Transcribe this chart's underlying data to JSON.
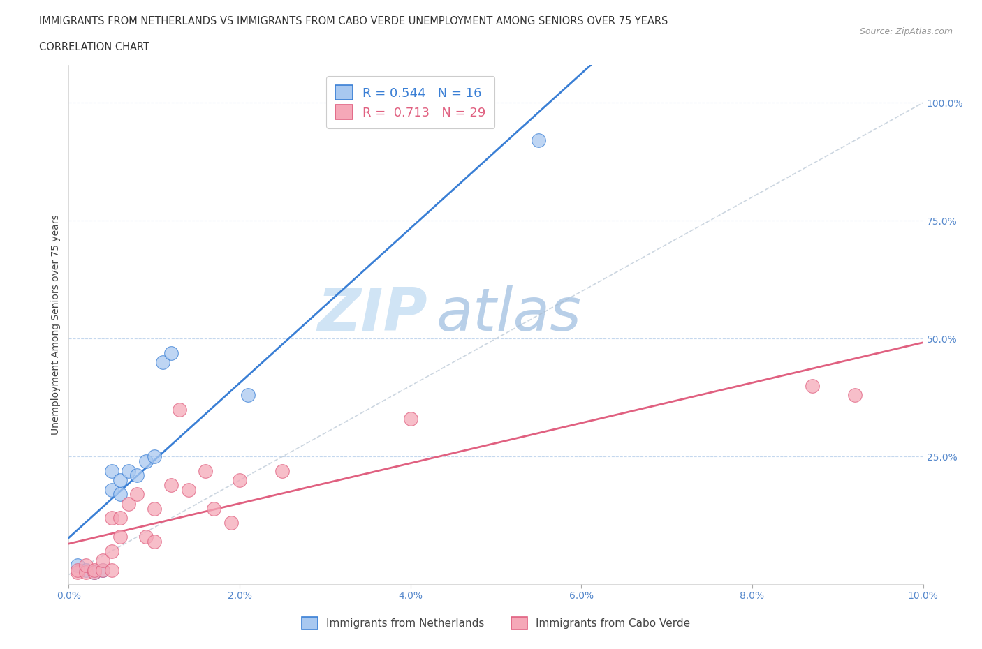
{
  "title_line1": "IMMIGRANTS FROM NETHERLANDS VS IMMIGRANTS FROM CABO VERDE UNEMPLOYMENT AMONG SENIORS OVER 75 YEARS",
  "title_line2": "CORRELATION CHART",
  "source": "Source: ZipAtlas.com",
  "ylabel": "Unemployment Among Seniors over 75 years",
  "xlim": [
    0.0,
    0.1
  ],
  "ylim": [
    -0.02,
    1.08
  ],
  "xticks": [
    0.0,
    0.02,
    0.04,
    0.06,
    0.08,
    0.1
  ],
  "xtick_labels": [
    "0.0%",
    "2.0%",
    "4.0%",
    "6.0%",
    "8.0%",
    "10.0%"
  ],
  "ytick_labels": [
    "100.0%",
    "75.0%",
    "50.0%",
    "25.0%"
  ],
  "yticks": [
    1.0,
    0.75,
    0.5,
    0.25
  ],
  "netherlands_R": 0.544,
  "netherlands_N": 16,
  "caboverde_R": 0.713,
  "caboverde_N": 29,
  "netherlands_color": "#a8c8f0",
  "caboverde_color": "#f5a8b8",
  "netherlands_line_color": "#3a7fd5",
  "caboverde_line_color": "#e06080",
  "watermark_zip": "ZIP",
  "watermark_atlas": "atlas",
  "watermark_color_zip": "#c8dff5",
  "watermark_color_atlas": "#a0c4e8",
  "netherlands_x": [
    0.001,
    0.002,
    0.003,
    0.004,
    0.005,
    0.005,
    0.006,
    0.006,
    0.007,
    0.008,
    0.009,
    0.01,
    0.011,
    0.012,
    0.021,
    0.055
  ],
  "netherlands_y": [
    0.02,
    0.01,
    0.005,
    0.01,
    0.18,
    0.22,
    0.2,
    0.17,
    0.22,
    0.21,
    0.24,
    0.25,
    0.45,
    0.47,
    0.38,
    0.92
  ],
  "caboverde_x": [
    0.001,
    0.001,
    0.002,
    0.002,
    0.003,
    0.003,
    0.004,
    0.004,
    0.005,
    0.005,
    0.005,
    0.006,
    0.006,
    0.007,
    0.008,
    0.009,
    0.01,
    0.01,
    0.012,
    0.013,
    0.014,
    0.016,
    0.017,
    0.019,
    0.02,
    0.025,
    0.04,
    0.087,
    0.092
  ],
  "caboverde_y": [
    0.005,
    0.01,
    0.005,
    0.02,
    0.005,
    0.01,
    0.01,
    0.03,
    0.05,
    0.01,
    0.12,
    0.08,
    0.12,
    0.15,
    0.17,
    0.08,
    0.14,
    0.07,
    0.19,
    0.35,
    0.18,
    0.22,
    0.14,
    0.11,
    0.2,
    0.22,
    0.33,
    0.4,
    0.38
  ],
  "right_yticks": [
    1.0,
    0.75,
    0.5,
    0.25
  ],
  "right_ytick_labels": [
    "100.0%",
    "75.0%",
    "50.0%",
    "25.0%"
  ]
}
